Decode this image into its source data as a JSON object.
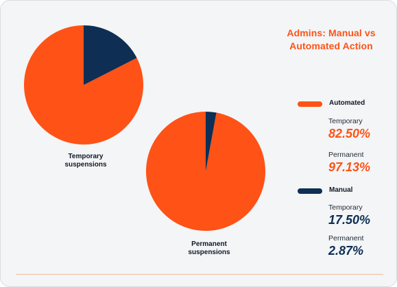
{
  "colors": {
    "automated": "#ff5217",
    "manual": "#0e2e54",
    "title": "#ff5217"
  },
  "chart_data": {
    "type": "pie",
    "title": "Admins: Manual vs Automated Action",
    "title_lines": [
      "Admins: Manual vs",
      "Automated Action"
    ],
    "legend": [
      "Automated",
      "Manual"
    ],
    "pies": [
      {
        "name_lines": [
          "Temporary",
          "suspensions"
        ],
        "slices": [
          {
            "label": "Automated",
            "value": 82.5
          },
          {
            "label": "Manual",
            "value": 17.5
          }
        ]
      },
      {
        "name_lines": [
          "Permanent",
          "suspensions"
        ],
        "slices": [
          {
            "label": "Automated",
            "value": 97.13
          },
          {
            "label": "Manual",
            "value": 2.87
          }
        ]
      }
    ]
  },
  "stats": {
    "automated": {
      "label": "Automated",
      "temporary_label": "Temporary",
      "temporary_value": "82.50%",
      "permanent_label": "Permanent",
      "permanent_value": "97.13%"
    },
    "manual": {
      "label": "Manual",
      "temporary_label": "Temporary",
      "temporary_value": "17.50%",
      "permanent_label": "Permanent",
      "permanent_value": "2.87%"
    }
  }
}
